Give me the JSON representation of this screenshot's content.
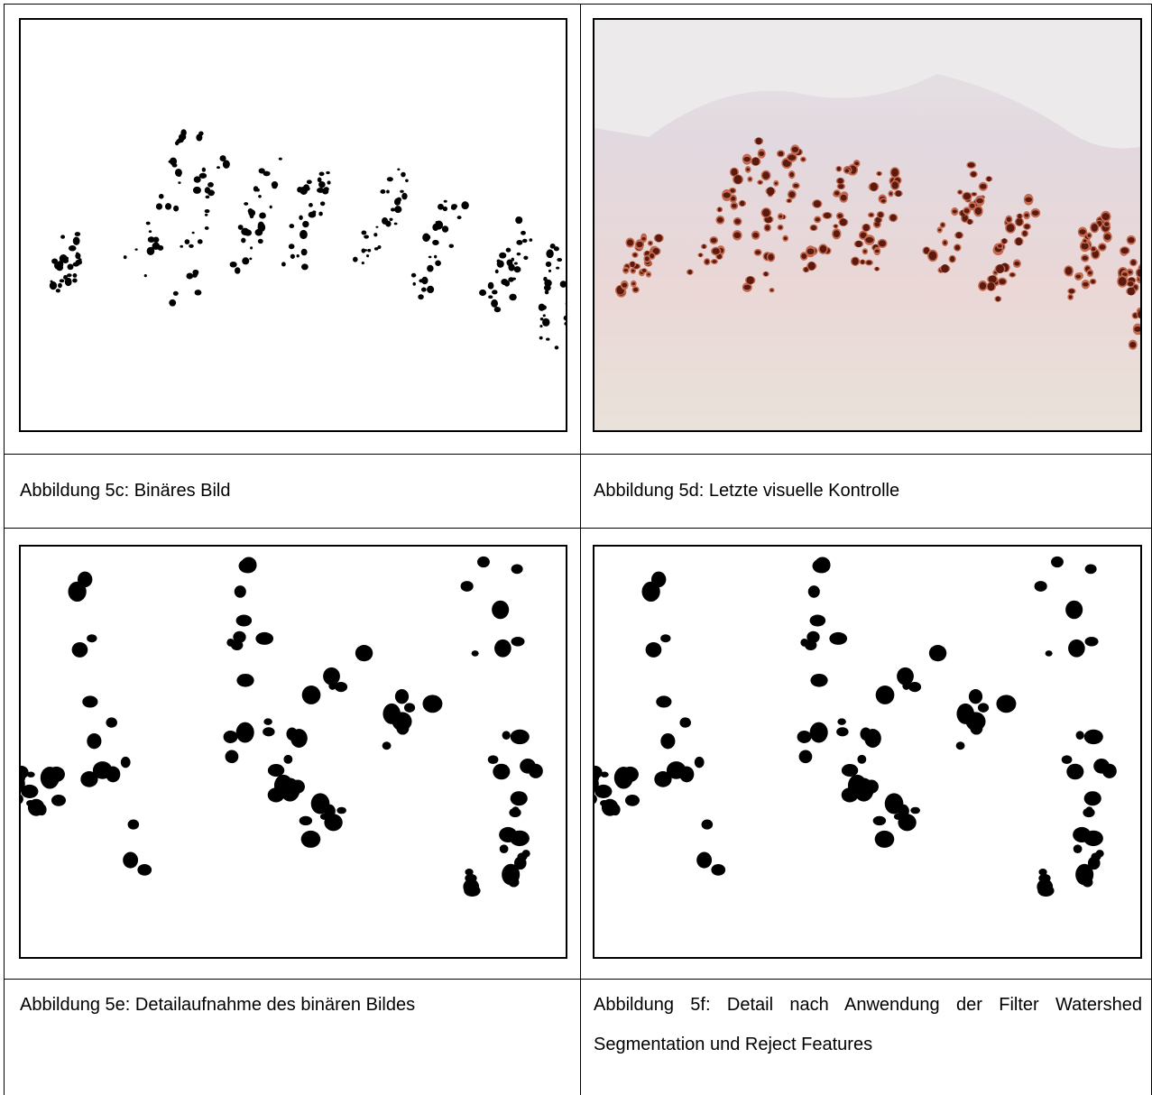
{
  "captions": [
    "Abbildung 5c: Binäres Bild",
    "Abbildung 5d: Letzte visuelle Kontrolle",
    "Abbildung 5e: Detailaufnahme des binären Bildes",
    "Abbildung 5f: Detail nach Anwendung der Filter Watershed Segmentation und Reject Features"
  ]
}
